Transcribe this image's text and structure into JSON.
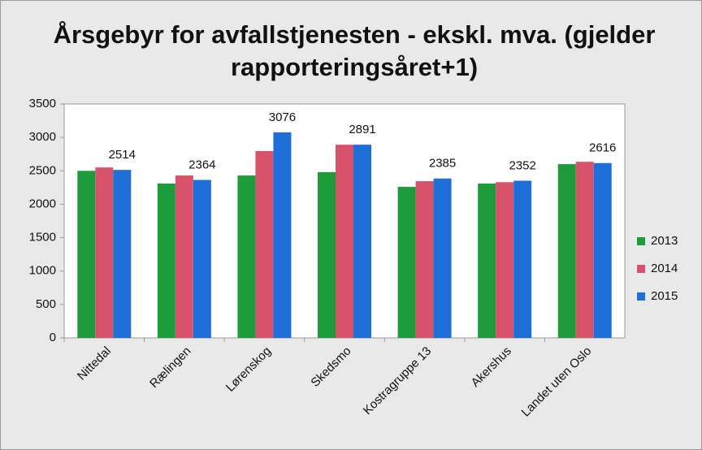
{
  "chart_data": {
    "type": "bar",
    "title": "Årsgebyr for avfallstjenesten - ekskl. mva. (gjelder rapporteringsåret+1)",
    "categories": [
      "Nittedal",
      "Rælingen",
      "Lørenskog",
      "Skedsmo",
      "Kostragruppe 13",
      "Akershus",
      "Landet uten Oslo"
    ],
    "series": [
      {
        "name": "2013",
        "color": "#1e9c3c",
        "values": [
          2500,
          2310,
          2430,
          2480,
          2260,
          2310,
          2600
        ]
      },
      {
        "name": "2014",
        "color": "#d7536b",
        "values": [
          2550,
          2430,
          2795,
          2890,
          2345,
          2330,
          2635
        ]
      },
      {
        "name": "2015",
        "color": "#1f6fd8",
        "values": [
          2514,
          2364,
          3076,
          2891,
          2385,
          2352,
          2616
        ],
        "show_labels": true
      }
    ],
    "ylim": [
      0,
      3500
    ],
    "yticks": [
      0,
      500,
      1000,
      1500,
      2000,
      2500,
      3000,
      3500
    ],
    "grid": false,
    "legend": "right"
  }
}
